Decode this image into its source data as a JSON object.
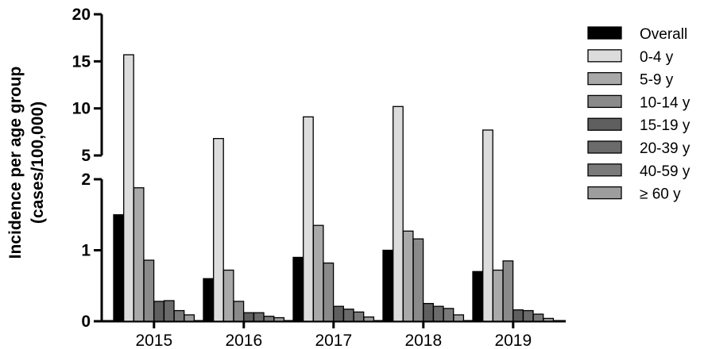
{
  "chart_data": {
    "type": "bar",
    "ylabel_line1": "Incidence per age group",
    "ylabel_line2": "(cases/100,000)",
    "xlabel": "",
    "categories": [
      "2015",
      "2016",
      "2017",
      "2018",
      "2019"
    ],
    "y_axis_break": {
      "lower_range": [
        0,
        2
      ],
      "upper_range": [
        5,
        20
      ]
    },
    "lower_ticks": [
      "0",
      "1",
      "2"
    ],
    "upper_ticks": [
      "5",
      "10",
      "15",
      "20"
    ],
    "legend_position": "right",
    "series": [
      {
        "name": "Overall",
        "color": "#000000",
        "values": [
          1.5,
          0.6,
          0.9,
          1.0,
          0.7
        ]
      },
      {
        "name": "0-4 y",
        "color": "#dcdcdc",
        "values": [
          15.7,
          6.8,
          9.1,
          10.2,
          7.7
        ]
      },
      {
        "name": "5-9 y",
        "color": "#a9a9a9",
        "values": [
          1.88,
          0.72,
          1.35,
          1.27,
          0.72
        ]
      },
      {
        "name": "10-14 y",
        "color": "#8a8a8a",
        "values": [
          0.86,
          0.28,
          0.82,
          1.16,
          0.85
        ]
      },
      {
        "name": "15-19 y",
        "color": "#5f5f5f",
        "values": [
          0.28,
          0.12,
          0.21,
          0.25,
          0.16
        ]
      },
      {
        "name": "20-39 y",
        "color": "#6b6b6b",
        "values": [
          0.29,
          0.12,
          0.17,
          0.21,
          0.15
        ]
      },
      {
        "name": "40-59 y",
        "color": "#7a7a7a",
        "values": [
          0.15,
          0.07,
          0.13,
          0.18,
          0.1
        ]
      },
      {
        "name": "≥ 60 y",
        "color": "#9d9d9d",
        "values": [
          0.09,
          0.05,
          0.06,
          0.09,
          0.04
        ]
      }
    ]
  }
}
